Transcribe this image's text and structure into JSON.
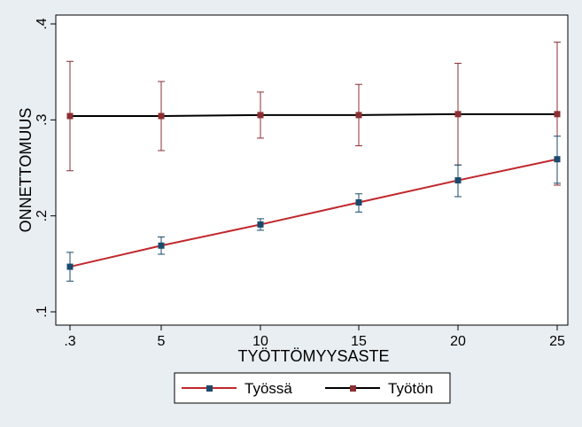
{
  "chart_data": {
    "type": "line",
    "xlabel": "TYÖTTÖMYYSASTE",
    "ylabel": "ONNETTOMUUS",
    "x_tick_labels": [
      ".3",
      "5",
      "10",
      "15",
      "20",
      "25"
    ],
    "y_ticks": [
      0.1,
      0.2,
      0.3,
      0.4
    ],
    "y_tick_labels": [
      ".1",
      ".2",
      ".3",
      ".4"
    ],
    "ylim": [
      0.1,
      0.4
    ],
    "grid": false,
    "legend_position": "bottom",
    "series": [
      {
        "name": "Työssä",
        "color": "#c0282d",
        "marker_color": "#1b4a6b",
        "values": [
          0.147,
          0.169,
          0.191,
          0.214,
          0.237,
          0.259
        ],
        "ci_low": [
          0.132,
          0.16,
          0.185,
          0.204,
          0.22,
          0.234
        ],
        "ci_high": [
          0.162,
          0.178,
          0.197,
          0.223,
          0.253,
          0.283
        ]
      },
      {
        "name": "Työtön",
        "color": "#000000",
        "marker_color": "#8b2f33",
        "values": [
          0.304,
          0.304,
          0.305,
          0.305,
          0.306,
          0.306
        ],
        "ci_low": [
          0.247,
          0.268,
          0.281,
          0.273,
          0.253,
          0.232
        ],
        "ci_high": [
          0.361,
          0.34,
          0.329,
          0.337,
          0.359,
          0.381
        ]
      }
    ]
  }
}
